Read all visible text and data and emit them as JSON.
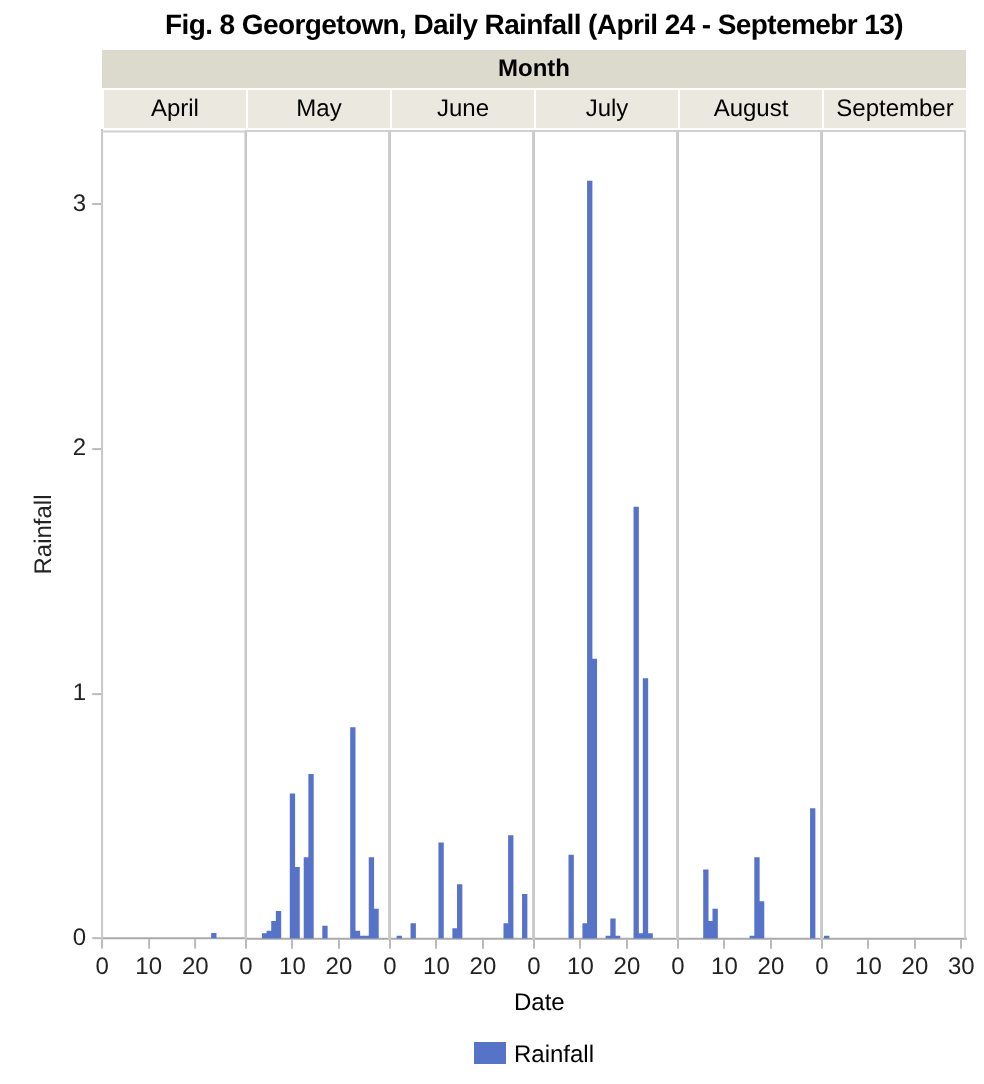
{
  "chart_data": [
    {
      "type": "bar",
      "title": "Fig. 8 Georgetown, Daily Rainfall (April 24 - Septemebr 13)",
      "annotations": [
        "Month"
      ],
      "x2label": "April",
      "ylabel": "Rainfall",
      "legend": "bottom",
      "xlim": [
        0,
        31
      ],
      "xticks": [
        0,
        10,
        20
      ],
      "ylim": [
        0,
        3.3
      ],
      "yticks": [
        0,
        1,
        2,
        3
      ],
      "x": [
        24
      ],
      "series": [
        {
          "name": "Rainfall",
          "color": "#5773c8",
          "values": [
            0.02
          ]
        }
      ]
    },
    {
      "type": "bar",
      "x2label": "May",
      "xlim": [
        0,
        31
      ],
      "xticks": [
        0,
        10,
        20
      ],
      "ylim": [
        0,
        3.3
      ],
      "yticks": [
        0,
        1,
        2,
        3
      ],
      "tick_labels": "x",
      "x": [
        4,
        5,
        6,
        7,
        10,
        11,
        13,
        14,
        17,
        23,
        24,
        25,
        26,
        27,
        28
      ],
      "series": [
        {
          "color": "#5773c8",
          "values": [
            0.02,
            0.03,
            0.07,
            0.11,
            0.59,
            0.29,
            0.33,
            0.67,
            0.05,
            0.86,
            0.03,
            0.01,
            0.01,
            0.33,
            0.12
          ]
        }
      ]
    },
    {
      "type": "bar",
      "x2label": "June",
      "xlim": [
        0,
        31
      ],
      "xticks": [
        0,
        10,
        20
      ],
      "ylim": [
        0,
        3.3
      ],
      "yticks": [
        0,
        1,
        2,
        3
      ],
      "tick_labels": "x",
      "x": [
        2,
        5,
        11,
        14,
        15,
        25,
        26,
        29
      ],
      "series": [
        {
          "color": "#5773c8",
          "values": [
            0.01,
            0.06,
            0.39,
            0.04,
            0.22,
            0.06,
            0.42,
            0.18
          ]
        }
      ]
    },
    {
      "type": "bar",
      "x2label": "July",
      "xlabel": "Date",
      "xlim": [
        0,
        31
      ],
      "xticks": [
        0,
        10,
        20
      ],
      "ylim": [
        0,
        3.3
      ],
      "yticks": [
        0,
        1,
        2,
        3
      ],
      "tick_labels": "x",
      "x": [
        8,
        11,
        12,
        13,
        16,
        17,
        18,
        22,
        23,
        24,
        25
      ],
      "series": [
        {
          "color": "#5773c8",
          "values": [
            0.34,
            0.06,
            3.09,
            1.14,
            0.01,
            0.08,
            0.01,
            1.76,
            0.02,
            1.06,
            0.02
          ]
        }
      ]
    },
    {
      "type": "bar",
      "x2label": "August",
      "xlim": [
        0,
        31
      ],
      "xticks": [
        0,
        10,
        20
      ],
      "ylim": [
        0,
        3.3
      ],
      "yticks": [
        0,
        1,
        2,
        3
      ],
      "tick_labels": "x",
      "x": [
        6,
        7,
        8,
        16,
        17,
        18,
        29
      ],
      "series": [
        {
          "color": "#5773c8",
          "values": [
            0.28,
            0.07,
            0.12,
            0.01,
            0.33,
            0.15,
            0.53
          ]
        }
      ]
    },
    {
      "type": "bar",
      "x2label": "September",
      "xlim": [
        0,
        31
      ],
      "xticks": [
        0,
        10,
        20,
        30
      ],
      "ylim": [
        0,
        3.3
      ],
      "yticks": [
        0,
        1,
        2,
        3
      ],
      "tick_labels": "x",
      "x": [
        1
      ],
      "series": [
        {
          "color": "#5773c8",
          "values": [
            0.01
          ]
        }
      ]
    }
  ]
}
